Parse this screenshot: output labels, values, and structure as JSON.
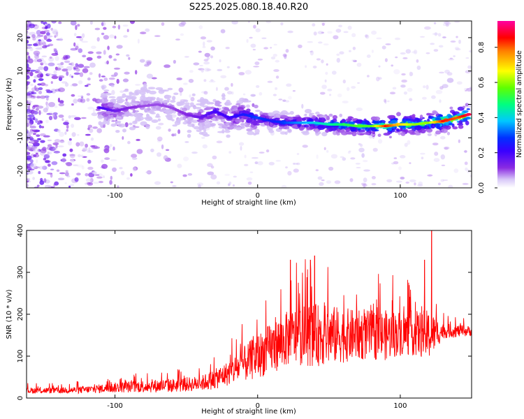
{
  "title": "S225.2025.080.18.40.R20",
  "chart_data": [
    {
      "type": "heatmap",
      "xlabel": "Height of straight line (km)",
      "ylabel": "Frequency (Hz)",
      "xlim": [
        -162,
        150
      ],
      "ylim": [
        -25,
        25
      ],
      "x_ticks": [
        -100,
        0,
        100
      ],
      "y_ticks": [
        -20,
        -10,
        0,
        10,
        20
      ],
      "colorbar": {
        "label": "Normalized spectral amplitude",
        "range": [
          0,
          0.95
        ],
        "ticks": [
          0.0,
          0.2,
          0.4,
          0.6,
          0.8
        ],
        "colors": [
          "#ffffff",
          "#d8c8f8",
          "#8a2be2",
          "#3a00ff",
          "#0030ff",
          "#00c8ff",
          "#00ff80",
          "#60ff00",
          "#ffff00",
          "#ff8000",
          "#ff0000",
          "#ff00a0"
        ]
      },
      "ridge": {
        "x": [
          -110,
          -100,
          -90,
          -80,
          -70,
          -60,
          -50,
          -40,
          -30,
          -20,
          -10,
          0,
          10,
          20,
          30,
          40,
          50,
          60,
          70,
          80,
          90,
          100,
          110,
          120,
          130,
          140,
          148
        ],
        "freq": [
          -1,
          -2,
          -1,
          -0.5,
          0,
          -1,
          -3,
          -4,
          -2,
          -4,
          -3,
          -4,
          -5,
          -5.5,
          -5.5,
          -5.5,
          -6,
          -6,
          -6.5,
          -6.5,
          -6.5,
          -6,
          -6,
          -5.5,
          -5,
          -4,
          -3
        ],
        "amplitude": [
          0.2,
          0.15,
          0.12,
          0.1,
          0.1,
          0.1,
          0.12,
          0.15,
          0.2,
          0.2,
          0.25,
          0.3,
          0.25,
          0.3,
          0.35,
          0.4,
          0.45,
          0.5,
          0.55,
          0.55,
          0.85,
          0.7,
          0.6,
          0.6,
          0.85,
          0.8,
          0.9
        ]
      }
    },
    {
      "type": "line",
      "xlabel": "Height of straight line (km)",
      "ylabel": "SNR (10 * v/v)",
      "xlim": [
        -162,
        150
      ],
      "ylim": [
        0,
        400
      ],
      "x_ticks": [
        -100,
        0,
        100
      ],
      "y_ticks": [
        0,
        100,
        200,
        300,
        400
      ],
      "color": "#ff0000",
      "envelope": {
        "x": [
          -162,
          -140,
          -120,
          -100,
          -80,
          -60,
          -40,
          -30,
          -20,
          -10,
          0,
          10,
          20,
          30,
          40,
          50,
          60,
          70,
          80,
          90,
          100,
          110,
          120,
          130,
          140,
          150
        ],
        "mean": [
          18,
          18,
          20,
          25,
          28,
          30,
          35,
          45,
          60,
          80,
          100,
          120,
          140,
          150,
          150,
          150,
          150,
          150,
          150,
          150,
          155,
          155,
          150,
          160,
          160,
          160
        ],
        "spread": [
          12,
          12,
          15,
          20,
          25,
          28,
          30,
          40,
          50,
          70,
          90,
          100,
          110,
          120,
          125,
          120,
          110,
          100,
          100,
          100,
          90,
          90,
          100,
          30,
          25,
          20
        ]
      },
      "peaks": [
        {
          "x": 23,
          "y": 330
        },
        {
          "x": 40,
          "y": 340
        },
        {
          "x": 37,
          "y": 330
        },
        {
          "x": 122,
          "y": 400
        },
        {
          "x": 117,
          "y": 330
        }
      ]
    }
  ]
}
